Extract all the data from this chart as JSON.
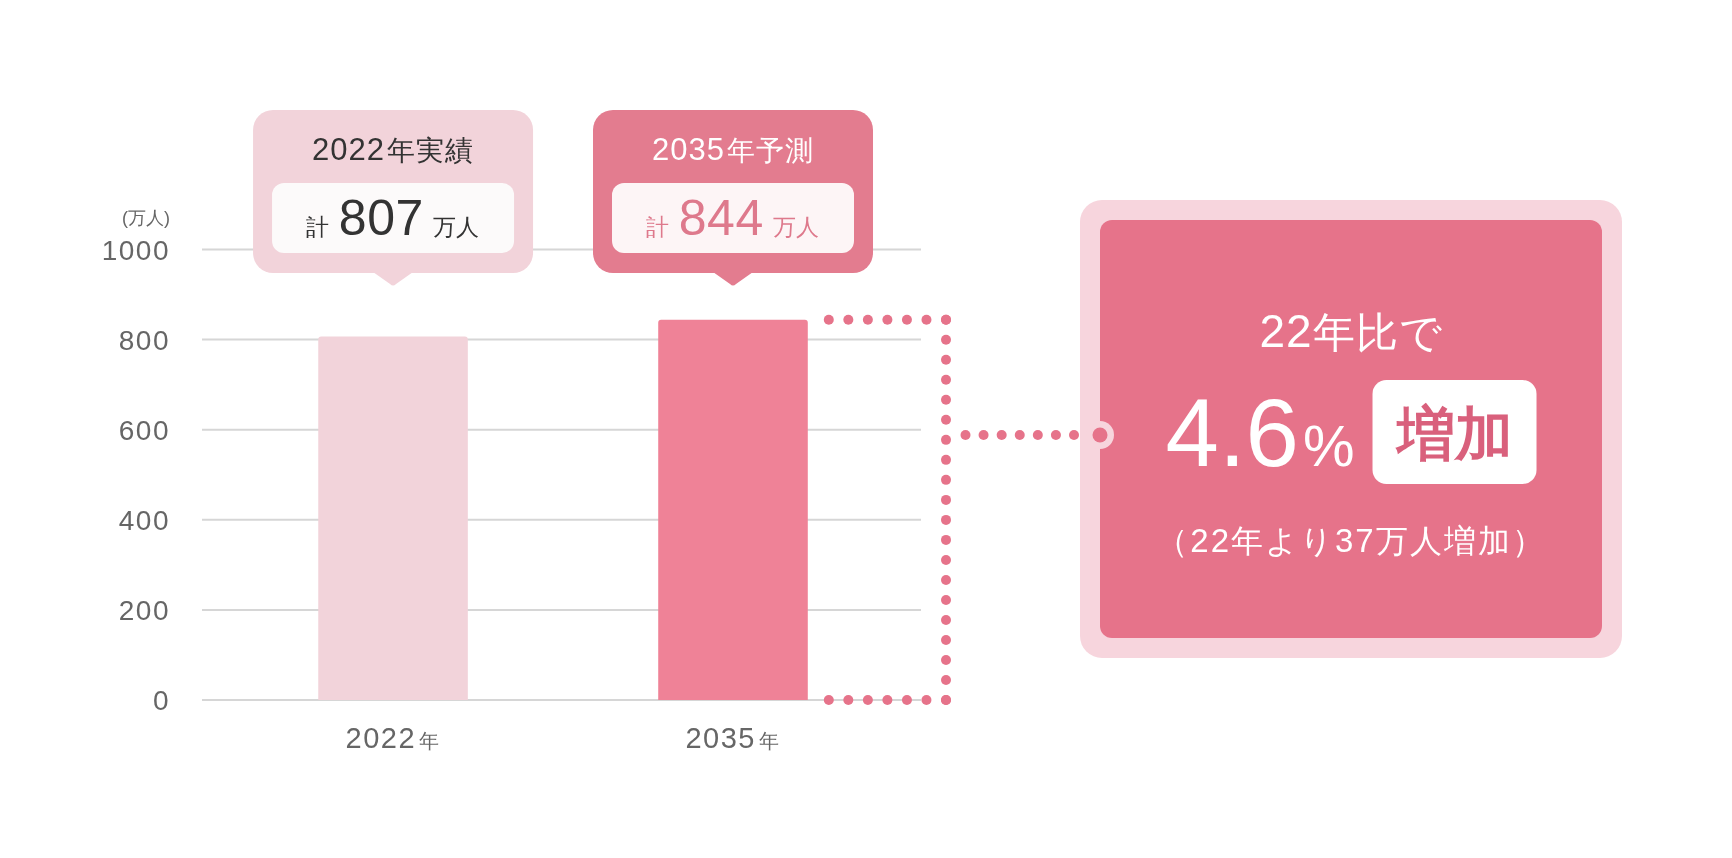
{
  "chart_data": {
    "type": "bar",
    "categories": [
      "2022年",
      "2035年"
    ],
    "values": [
      807,
      844
    ],
    "colors": [
      "#f2d3da",
      "#ef8297"
    ],
    "ylabel": "(万人)",
    "ylim": [
      0,
      1000
    ],
    "yticks": [
      0,
      200,
      400,
      600,
      800,
      1000
    ],
    "grid": "y",
    "value_labels": [
      "計807万人",
      "計844万人"
    ],
    "annotations": [
      "2022年実績",
      "2035年予測",
      "22年比で",
      "4.6%",
      "増加",
      "（22年より37万人増加）"
    ]
  }
}
